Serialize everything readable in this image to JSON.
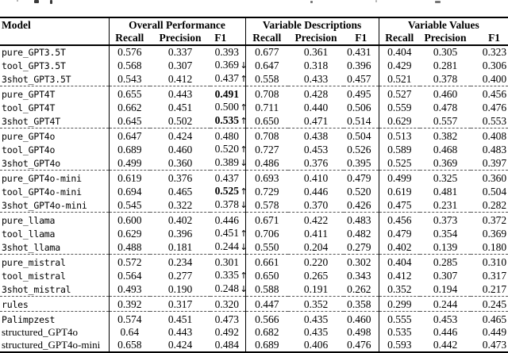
{
  "table": {
    "header": {
      "model": "Model",
      "groups": [
        "Overall Performance",
        "Variable Descriptions",
        "Variable Values"
      ],
      "metrics": [
        "Recall",
        "Precision",
        "F1"
      ]
    },
    "sections": [
      {
        "rows": [
          {
            "model": "pure_GPT3.5T",
            "serif": false,
            "overall": {
              "recall": "0.576",
              "precision": "0.337",
              "f1": "0.393",
              "f1_bold": false,
              "f1_arrow": ""
            },
            "descriptions": {
              "recall": "0.677",
              "precision": "0.361",
              "f1": "0.431"
            },
            "values": {
              "recall": "0.404",
              "precision": "0.305",
              "f1": "0.323"
            }
          },
          {
            "model": "tool_GPT3.5T",
            "serif": false,
            "overall": {
              "recall": "0.568",
              "precision": "0.307",
              "f1": "0.369",
              "f1_bold": false,
              "f1_arrow": "↓"
            },
            "descriptions": {
              "recall": "0.647",
              "precision": "0.318",
              "f1": "0.396"
            },
            "values": {
              "recall": "0.429",
              "precision": "0.281",
              "f1": "0.306"
            }
          },
          {
            "model": "3shot_GPT3.5T",
            "serif": false,
            "overall": {
              "recall": "0.543",
              "precision": "0.412",
              "f1": "0.437",
              "f1_bold": false,
              "f1_arrow": "↑"
            },
            "descriptions": {
              "recall": "0.558",
              "precision": "0.433",
              "f1": "0.457"
            },
            "values": {
              "recall": "0.521",
              "precision": "0.378",
              "f1": "0.400"
            }
          }
        ]
      },
      {
        "rows": [
          {
            "model": "pure_GPT4T",
            "serif": false,
            "overall": {
              "recall": "0.655",
              "precision": "0.443",
              "f1": "0.491",
              "f1_bold": true,
              "f1_arrow": ""
            },
            "descriptions": {
              "recall": "0.708",
              "precision": "0.428",
              "f1": "0.495"
            },
            "values": {
              "recall": "0.527",
              "precision": "0.460",
              "f1": "0.456"
            }
          },
          {
            "model": "tool_GPT4T",
            "serif": false,
            "overall": {
              "recall": "0.662",
              "precision": "0.451",
              "f1": "0.500",
              "f1_bold": false,
              "f1_arrow": "↑"
            },
            "descriptions": {
              "recall": "0.711",
              "precision": "0.440",
              "f1": "0.506"
            },
            "values": {
              "recall": "0.559",
              "precision": "0.478",
              "f1": "0.476"
            }
          },
          {
            "model": "3shot_GPT4T",
            "serif": false,
            "overall": {
              "recall": "0.645",
              "precision": "0.502",
              "f1": "0.535",
              "f1_bold": true,
              "f1_arrow": "↑"
            },
            "descriptions": {
              "recall": "0.650",
              "precision": "0.471",
              "f1": "0.514"
            },
            "values": {
              "recall": "0.629",
              "precision": "0.557",
              "f1": "0.553"
            }
          }
        ]
      },
      {
        "rows": [
          {
            "model": "pure_GPT4o",
            "serif": false,
            "overall": {
              "recall": "0.647",
              "precision": "0.424",
              "f1": "0.480",
              "f1_bold": false,
              "f1_arrow": ""
            },
            "descriptions": {
              "recall": "0.708",
              "precision": "0.438",
              "f1": "0.504"
            },
            "values": {
              "recall": "0.513",
              "precision": "0.382",
              "f1": "0.408"
            }
          },
          {
            "model": "tool_GPT4o",
            "serif": false,
            "overall": {
              "recall": "0.689",
              "precision": "0.460",
              "f1": "0.520",
              "f1_bold": false,
              "f1_arrow": "↑"
            },
            "descriptions": {
              "recall": "0.727",
              "precision": "0.453",
              "f1": "0.526"
            },
            "values": {
              "recall": "0.589",
              "precision": "0.468",
              "f1": "0.483"
            }
          },
          {
            "model": "3shot_GPT4o",
            "serif": false,
            "overall": {
              "recall": "0.499",
              "precision": "0.360",
              "f1": "0.389",
              "f1_bold": false,
              "f1_arrow": "↓"
            },
            "descriptions": {
              "recall": "0.486",
              "precision": "0.376",
              "f1": "0.395"
            },
            "values": {
              "recall": "0.525",
              "precision": "0.369",
              "f1": "0.397"
            }
          }
        ]
      },
      {
        "rows": [
          {
            "model": "pure_GPT4o-mini",
            "serif": false,
            "overall": {
              "recall": "0.619",
              "precision": "0.376",
              "f1": "0.437",
              "f1_bold": false,
              "f1_arrow": ""
            },
            "descriptions": {
              "recall": "0.693",
              "precision": "0.410",
              "f1": "0.479"
            },
            "values": {
              "recall": "0.499",
              "precision": "0.325",
              "f1": "0.360"
            }
          },
          {
            "model": "tool_GPT4o-mini",
            "serif": false,
            "overall": {
              "recall": "0.694",
              "precision": "0.465",
              "f1": "0.525",
              "f1_bold": true,
              "f1_arrow": "↑"
            },
            "descriptions": {
              "recall": "0.729",
              "precision": "0.446",
              "f1": "0.520"
            },
            "values": {
              "recall": "0.619",
              "precision": "0.481",
              "f1": "0.504"
            }
          },
          {
            "model": "3shot_GPT4o-mini",
            "serif": false,
            "overall": {
              "recall": "0.545",
              "precision": "0.322",
              "f1": "0.378",
              "f1_bold": false,
              "f1_arrow": "↓"
            },
            "descriptions": {
              "recall": "0.578",
              "precision": "0.370",
              "f1": "0.426"
            },
            "values": {
              "recall": "0.475",
              "precision": "0.231",
              "f1": "0.282"
            }
          }
        ]
      },
      {
        "rows": [
          {
            "model": "pure_llama",
            "serif": false,
            "overall": {
              "recall": "0.600",
              "precision": "0.402",
              "f1": "0.446",
              "f1_bold": false,
              "f1_arrow": ""
            },
            "descriptions": {
              "recall": "0.671",
              "precision": "0.422",
              "f1": "0.483"
            },
            "values": {
              "recall": "0.456",
              "precision": "0.373",
              "f1": "0.372"
            }
          },
          {
            "model": "tool_llama",
            "serif": false,
            "overall": {
              "recall": "0.629",
              "precision": "0.396",
              "f1": "0.451",
              "f1_bold": false,
              "f1_arrow": "↑"
            },
            "descriptions": {
              "recall": "0.706",
              "precision": "0.411",
              "f1": "0.482"
            },
            "values": {
              "recall": "0.479",
              "precision": "0.354",
              "f1": "0.369"
            }
          },
          {
            "model": "3shot_llama",
            "serif": false,
            "overall": {
              "recall": "0.488",
              "precision": "0.181",
              "f1": "0.244",
              "f1_bold": false,
              "f1_arrow": "↓"
            },
            "descriptions": {
              "recall": "0.550",
              "precision": "0.204",
              "f1": "0.279"
            },
            "values": {
              "recall": "0.402",
              "precision": "0.139",
              "f1": "0.180"
            }
          }
        ]
      },
      {
        "rows": [
          {
            "model": "pure_mistral",
            "serif": false,
            "overall": {
              "recall": "0.572",
              "precision": "0.234",
              "f1": "0.301",
              "f1_bold": false,
              "f1_arrow": ""
            },
            "descriptions": {
              "recall": "0.661",
              "precision": "0.220",
              "f1": "0.302"
            },
            "values": {
              "recall": "0.404",
              "precision": "0.285",
              "f1": "0.310"
            }
          },
          {
            "model": "tool_mistral",
            "serif": false,
            "overall": {
              "recall": "0.564",
              "precision": "0.277",
              "f1": "0.335",
              "f1_bold": false,
              "f1_arrow": "↑"
            },
            "descriptions": {
              "recall": "0.650",
              "precision": "0.265",
              "f1": "0.343"
            },
            "values": {
              "recall": "0.412",
              "precision": "0.307",
              "f1": "0.317"
            }
          },
          {
            "model": "3shot_mistral",
            "serif": false,
            "overall": {
              "recall": "0.493",
              "precision": "0.190",
              "f1": "0.248",
              "f1_bold": false,
              "f1_arrow": "↓"
            },
            "descriptions": {
              "recall": "0.588",
              "precision": "0.191",
              "f1": "0.262"
            },
            "values": {
              "recall": "0.352",
              "precision": "0.194",
              "f1": "0.217"
            }
          }
        ]
      },
      {
        "rows": [
          {
            "model": "rules",
            "serif": false,
            "overall": {
              "recall": "0.392",
              "precision": "0.317",
              "f1": "0.320",
              "f1_bold": false,
              "f1_arrow": ""
            },
            "descriptions": {
              "recall": "0.447",
              "precision": "0.352",
              "f1": "0.358"
            },
            "values": {
              "recall": "0.299",
              "precision": "0.244",
              "f1": "0.245"
            }
          }
        ]
      },
      {
        "rows": [
          {
            "model": "Palimpzest",
            "serif": false,
            "overall": {
              "recall": "0.574",
              "precision": "0.451",
              "f1": "0.473",
              "f1_bold": false,
              "f1_arrow": ""
            },
            "descriptions": {
              "recall": "0.566",
              "precision": "0.435",
              "f1": "0.460"
            },
            "values": {
              "recall": "0.555",
              "precision": "0.453",
              "f1": "0.465"
            }
          },
          {
            "model": "structured_GPT4o",
            "serif": true,
            "overall": {
              "recall": "0.64",
              "precision": "0.443",
              "f1": "0.492",
              "f1_bold": false,
              "f1_arrow": ""
            },
            "descriptions": {
              "recall": "0.682",
              "precision": "0.435",
              "f1": "0.498"
            },
            "values": {
              "recall": "0.535",
              "precision": "0.446",
              "f1": "0.449"
            }
          },
          {
            "model": "structured_GPT4o-mini",
            "serif": true,
            "overall": {
              "recall": "0.658",
              "precision": "0.424",
              "f1": "0.484",
              "f1_bold": false,
              "f1_arrow": ""
            },
            "descriptions": {
              "recall": "0.689",
              "precision": "0.406",
              "f1": "0.476"
            },
            "values": {
              "recall": "0.593",
              "precision": "0.442",
              "f1": "0.473"
            }
          }
        ]
      }
    ]
  }
}
